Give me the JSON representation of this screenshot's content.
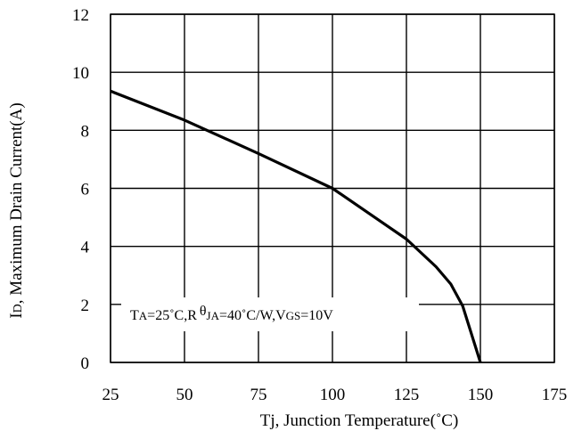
{
  "chart_data": {
    "type": "line",
    "xlabel": "Tj, Junction Temperature(˚C)",
    "ylabel": {
      "main": "I",
      "sub": "D",
      "rest": ", Maximum Drain Current(A)"
    },
    "annotation": {
      "t": "T",
      "a1": "A",
      "p1": "=25˚C,R",
      "theta": "θ",
      "ja": "JA",
      "p2": "=40˚C/W,V",
      "gs": "GS",
      "p3": "=10V"
    },
    "xlim": [
      25,
      175
    ],
    "ylim": [
      0,
      12
    ],
    "xticks": [
      "25",
      "50",
      "75",
      "100",
      "125",
      "150",
      "175"
    ],
    "yticks": [
      "0",
      "2",
      "4",
      "6",
      "8",
      "10",
      "12"
    ],
    "grid": true,
    "series": [
      {
        "x": [
          25,
          50,
          75,
          100,
          125,
          135,
          140,
          144,
          150
        ],
        "y": [
          9.35,
          8.35,
          7.2,
          6.0,
          4.25,
          3.3,
          2.7,
          1.95,
          0
        ]
      }
    ]
  }
}
